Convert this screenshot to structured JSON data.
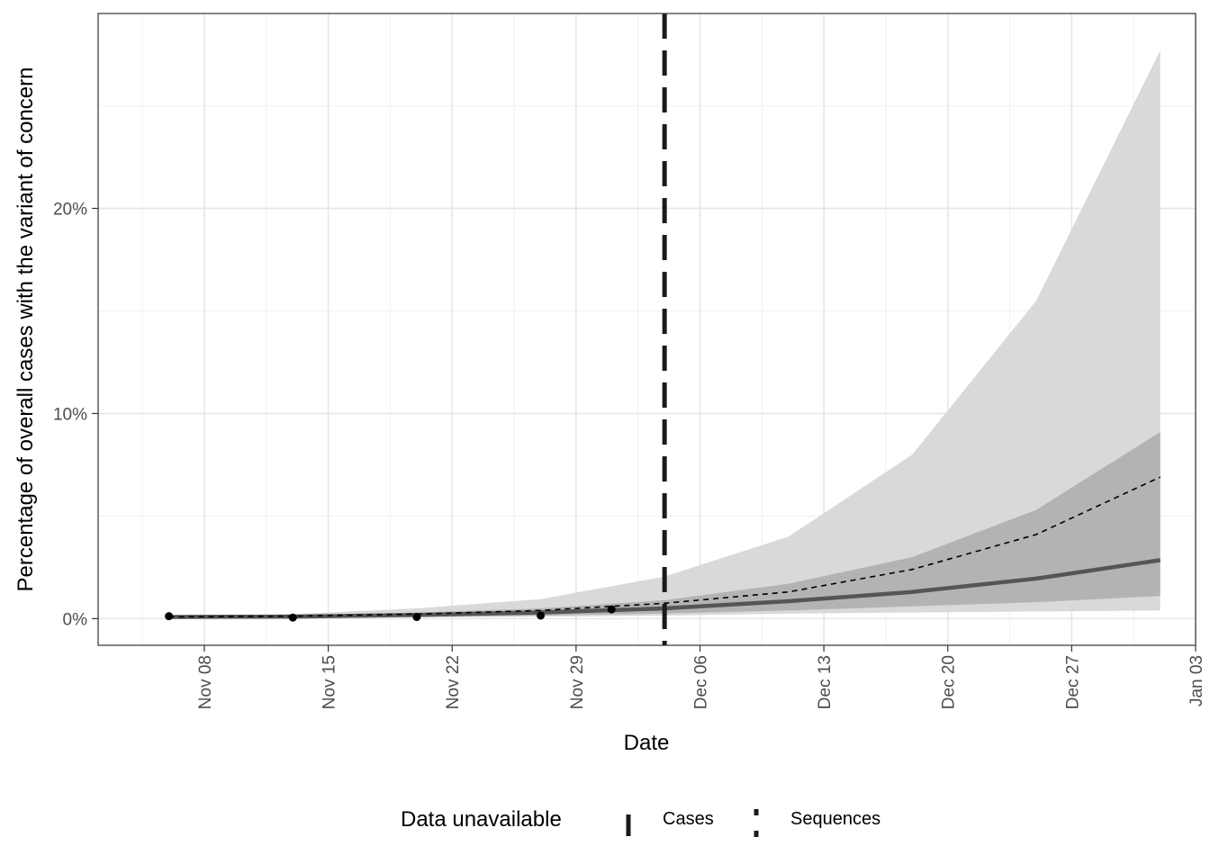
{
  "chart_data": {
    "type": "line",
    "xlabel": "Date",
    "ylabel": "Percentage of overall cases with the variant of concern",
    "x_ticks": [
      "Nov 08",
      "Nov 15",
      "Nov 22",
      "Nov 29",
      "Dec 06",
      "Dec 13",
      "Dec 20",
      "Dec 27",
      "Jan 03"
    ],
    "y_ticks": [
      "0%",
      "10%",
      "20%"
    ],
    "x_range": [
      "2020-11-02",
      "2021-01-03"
    ],
    "ylim": [
      -1.3,
      29.5
    ],
    "grid": true,
    "data_unavailable_date": "2020-12-04",
    "observed_points": {
      "x": [
        "2020-11-06",
        "2020-11-13",
        "2020-11-20",
        "2020-11-27",
        "2020-12-01"
      ],
      "y": [
        0.12,
        0.05,
        0.08,
        0.15,
        0.45
      ]
    },
    "series": [
      {
        "style": "solid-thick",
        "x": [
          "2020-11-06",
          "2020-11-13",
          "2020-11-20",
          "2020-11-27",
          "2020-12-04",
          "2020-12-11",
          "2020-12-18",
          "2020-12-25",
          "2021-01-01"
        ],
        "y": [
          0.08,
          0.1,
          0.18,
          0.3,
          0.5,
          0.85,
          1.3,
          1.95,
          2.85
        ]
      },
      {
        "style": "dashed-thin",
        "x": [
          "2020-11-06",
          "2020-11-13",
          "2020-11-20",
          "2020-11-27",
          "2020-12-04",
          "2020-12-11",
          "2020-12-18",
          "2020-12-25",
          "2021-01-01"
        ],
        "y": [
          0.08,
          0.12,
          0.22,
          0.4,
          0.75,
          1.3,
          2.4,
          4.1,
          6.9
        ]
      }
    ],
    "bands": [
      {
        "level": "outer",
        "color": "#d9d9d9",
        "x": [
          "2020-11-06",
          "2020-11-13",
          "2020-11-20",
          "2020-11-27",
          "2020-12-04",
          "2020-12-11",
          "2020-12-18",
          "2020-12-25",
          "2021-01-01"
        ],
        "lower": [
          0.02,
          0.03,
          0.06,
          0.1,
          0.15,
          0.25,
          0.3,
          0.35,
          0.4
        ],
        "upper": [
          0.1,
          0.22,
          0.5,
          0.95,
          2.05,
          4.0,
          8.0,
          15.5,
          27.7
        ]
      },
      {
        "level": "inner",
        "color": "#b3b3b3",
        "x": [
          "2020-11-06",
          "2020-11-13",
          "2020-11-20",
          "2020-11-27",
          "2020-12-04",
          "2020-12-11",
          "2020-12-18",
          "2020-12-25",
          "2021-01-01"
        ],
        "lower": [
          0.03,
          0.05,
          0.09,
          0.15,
          0.25,
          0.4,
          0.6,
          0.8,
          1.1
        ],
        "upper": [
          0.08,
          0.15,
          0.3,
          0.5,
          0.9,
          1.7,
          3.0,
          5.3,
          9.1
        ]
      }
    ],
    "legend": {
      "title": "Data unavailable",
      "position": "bottom",
      "items": [
        {
          "label": "Cases",
          "symbol": "solid-bar"
        },
        {
          "label": "Sequences",
          "symbol": "dotted-bar"
        }
      ]
    }
  }
}
